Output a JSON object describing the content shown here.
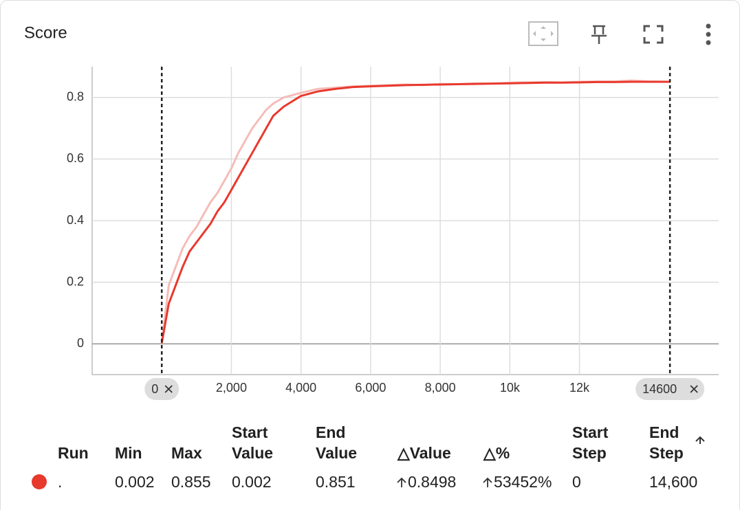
{
  "header": {
    "title": "Score"
  },
  "chart_data": {
    "type": "line",
    "x": [
      0,
      200,
      400,
      600,
      800,
      1000,
      1200,
      1400,
      1600,
      1800,
      2000,
      2200,
      2400,
      2600,
      2800,
      3000,
      3200,
      3500,
      4000,
      4500,
      5000,
      5500,
      6000,
      6500,
      7000,
      7500,
      8000,
      8500,
      9000,
      9500,
      10000,
      10500,
      11000,
      11500,
      12000,
      12500,
      13000,
      13500,
      14000,
      14600
    ],
    "series": [
      {
        "color": "#f5bcb8",
        "values": [
          0.002,
          0.19,
          0.25,
          0.31,
          0.35,
          0.38,
          0.42,
          0.46,
          0.49,
          0.53,
          0.57,
          0.62,
          0.66,
          0.7,
          0.73,
          0.76,
          0.78,
          0.8,
          0.815,
          0.828,
          0.832,
          0.836,
          0.838,
          0.84,
          0.842,
          0.84,
          0.844,
          0.843,
          0.846,
          0.845,
          0.848,
          0.849,
          0.85,
          0.849,
          0.851,
          0.852,
          0.852,
          0.855,
          0.852,
          0.851
        ]
      },
      {
        "color": "#e8392d",
        "values": [
          0.002,
          0.13,
          0.19,
          0.25,
          0.3,
          0.33,
          0.36,
          0.39,
          0.43,
          0.46,
          0.5,
          0.54,
          0.58,
          0.62,
          0.66,
          0.7,
          0.74,
          0.77,
          0.805,
          0.82,
          0.828,
          0.834,
          0.836,
          0.838,
          0.84,
          0.841,
          0.842,
          0.843,
          0.844,
          0.845,
          0.846,
          0.847,
          0.848,
          0.848,
          0.849,
          0.85,
          0.85,
          0.851,
          0.851,
          0.851
        ]
      }
    ],
    "xlim": [
      -2000,
      16000
    ],
    "ylim": [
      -0.1,
      0.9
    ],
    "yticks": [
      0,
      0.2,
      0.4,
      0.6,
      0.8
    ],
    "xticks": [
      {
        "value": 2000,
        "label": "2,000"
      },
      {
        "value": 4000,
        "label": "4,000"
      },
      {
        "value": 6000,
        "label": "6,000"
      },
      {
        "value": 8000,
        "label": "8,000"
      },
      {
        "value": 10000,
        "label": "10k"
      },
      {
        "value": 12000,
        "label": "12k"
      }
    ],
    "grid": true,
    "range": [
      0,
      14600
    ]
  },
  "table": {
    "headers": [
      "Run",
      "Min",
      "Max",
      "Start Value",
      "End Value",
      "△Value",
      "△%",
      "Start Step",
      "End Step"
    ],
    "rows": [
      [
        ".",
        "0.002",
        "0.855",
        "0.002",
        "0.851",
        "0.8498",
        "53452%",
        "0",
        "14,600"
      ]
    ]
  }
}
